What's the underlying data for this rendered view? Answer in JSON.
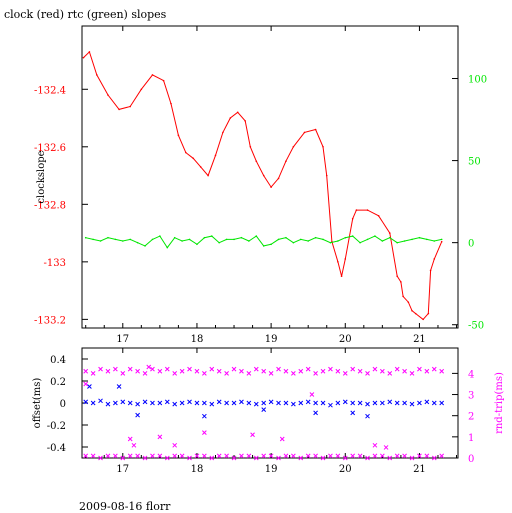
{
  "title": "clock (red) rtc (green) slopes",
  "footer": "2009-08-16 florr",
  "colors": {
    "clock": "#ff0000",
    "rtc": "#00e600",
    "offset": "#0000ff",
    "roundtrip": "#ff00ff",
    "axis": "#000000"
  },
  "chart_data": [
    {
      "type": "line",
      "xlabel": "",
      "ylabel": "clockslope",
      "y2label": "",
      "xlim": [
        16.45,
        21.52
      ],
      "ylim": [
        -133.23,
        -132.18
      ],
      "y2lim": [
        -52,
        132
      ],
      "x_ticks": [
        17,
        18,
        19,
        20,
        21
      ],
      "y_ticks": [
        -132.4,
        -132.6,
        -132.8,
        -133.0,
        -133.2
      ],
      "y_tick_labels": [
        "-132.4",
        "-132.6",
        "-132.8",
        "-133",
        "-133.2"
      ],
      "y2_ticks": [
        100,
        50,
        0,
        -50
      ],
      "y2_tick_labels": [
        "100",
        "50",
        "0",
        "-50"
      ],
      "grid": false,
      "series": [
        {
          "name": "clock",
          "axis": "left",
          "color": "#ff0000",
          "x": [
            16.47,
            16.55,
            16.65,
            16.8,
            16.95,
            17.1,
            17.25,
            17.4,
            17.55,
            17.65,
            17.75,
            17.85,
            17.95,
            18.05,
            18.15,
            18.25,
            18.35,
            18.45,
            18.55,
            18.65,
            18.72,
            18.8,
            18.9,
            19.0,
            19.1,
            19.2,
            19.3,
            19.45,
            19.6,
            19.7,
            19.75,
            19.82,
            19.9,
            19.95,
            20.0,
            20.1,
            20.15,
            20.3,
            20.45,
            20.6,
            20.7,
            20.75,
            20.78,
            20.85,
            20.9,
            20.95,
            21.05,
            21.12,
            21.15,
            21.2,
            21.3
          ],
          "y": [
            -132.29,
            -132.27,
            -132.35,
            -132.42,
            -132.47,
            -132.46,
            -132.4,
            -132.35,
            -132.37,
            -132.45,
            -132.56,
            -132.62,
            -132.64,
            -132.67,
            -132.7,
            -132.63,
            -132.55,
            -132.5,
            -132.48,
            -132.51,
            -132.6,
            -132.65,
            -132.7,
            -132.74,
            -132.71,
            -132.65,
            -132.6,
            -132.55,
            -132.54,
            -132.6,
            -132.7,
            -132.93,
            -133.0,
            -133.05,
            -132.99,
            -132.85,
            -132.82,
            -132.82,
            -132.84,
            -132.9,
            -133.05,
            -133.07,
            -133.12,
            -133.14,
            -133.17,
            -133.18,
            -133.2,
            -133.18,
            -133.03,
            -132.99,
            -132.93
          ]
        },
        {
          "name": "rtc",
          "axis": "right",
          "color": "#00e600",
          "x": [
            16.5,
            16.6,
            16.7,
            16.8,
            16.9,
            17.0,
            17.1,
            17.2,
            17.3,
            17.4,
            17.5,
            17.6,
            17.7,
            17.8,
            17.9,
            18.0,
            18.1,
            18.2,
            18.3,
            18.4,
            18.5,
            18.6,
            18.7,
            18.8,
            18.9,
            19.0,
            19.1,
            19.2,
            19.3,
            19.4,
            19.5,
            19.6,
            19.7,
            19.8,
            19.9,
            20.0,
            20.1,
            20.2,
            20.3,
            20.4,
            20.5,
            20.6,
            20.7,
            20.8,
            20.9,
            21.0,
            21.1,
            21.2,
            21.3
          ],
          "y": [
            3,
            2,
            1,
            3,
            2,
            1,
            2,
            0,
            -2,
            2,
            4,
            -3,
            3,
            1,
            2,
            -1,
            3,
            4,
            0,
            2,
            2,
            3,
            1,
            4,
            -2,
            -1,
            2,
            3,
            0,
            2,
            1,
            3,
            2,
            0,
            1,
            3,
            4,
            0,
            2,
            4,
            1,
            3,
            0,
            1,
            2,
            3,
            2,
            1,
            2
          ]
        }
      ]
    },
    {
      "type": "scatter",
      "xlabel": "",
      "ylabel": "offset(ms)",
      "y2label": "rnd-trip(ms)",
      "xlim": [
        16.45,
        21.52
      ],
      "ylim": [
        -0.5,
        0.5
      ],
      "y2lim": [
        0,
        5.2
      ],
      "x_ticks": [
        17,
        18,
        19,
        20,
        21
      ],
      "y_ticks": [
        0.4,
        0.2,
        0,
        -0.2,
        -0.4
      ],
      "y_tick_labels": [
        "0.4",
        "0.2",
        "0",
        "-0.2",
        "-0.4"
      ],
      "y2_ticks": [
        4,
        3,
        2,
        1,
        0
      ],
      "y2_tick_labels": [
        "4",
        "3",
        "2",
        "1",
        "0"
      ],
      "grid": false,
      "series": [
        {
          "name": "offset",
          "axis": "left",
          "color": "#0000ff",
          "x": [
            16.5,
            16.6,
            16.7,
            16.8,
            16.9,
            17.0,
            17.1,
            17.2,
            17.3,
            17.4,
            17.5,
            17.6,
            17.7,
            17.8,
            17.9,
            18.0,
            18.1,
            18.2,
            18.3,
            18.4,
            18.5,
            18.6,
            18.7,
            18.8,
            18.9,
            19.0,
            19.1,
            19.2,
            19.3,
            19.4,
            19.5,
            19.6,
            19.7,
            19.8,
            19.9,
            20.0,
            20.1,
            20.2,
            20.3,
            20.4,
            20.5,
            20.6,
            20.7,
            20.8,
            20.9,
            21.0,
            21.1,
            21.2,
            21.3,
            16.55,
            16.95,
            17.2,
            18.1,
            18.9,
            19.6,
            20.3,
            20.1
          ],
          "y": [
            0.01,
            0.0,
            0.02,
            -0.01,
            0.0,
            0.01,
            0.0,
            -0.01,
            0.01,
            0.0,
            0.0,
            0.01,
            -0.01,
            0.0,
            0.01,
            0.0,
            0.0,
            -0.01,
            0.01,
            0.0,
            0.0,
            0.01,
            0.0,
            -0.01,
            0.0,
            0.01,
            0.0,
            0.0,
            -0.01,
            0.0,
            0.01,
            0.0,
            0.0,
            -0.02,
            0.0,
            0.01,
            0.0,
            0.0,
            -0.01,
            0.0,
            0.0,
            0.01,
            0.0,
            0.0,
            -0.01,
            0.0,
            0.01,
            0.0,
            0.0,
            0.15,
            0.15,
            -0.11,
            -0.12,
            -0.06,
            -0.09,
            -0.12,
            -0.09
          ]
        },
        {
          "name": "round-trip",
          "axis": "right",
          "color": "#ff00ff",
          "x": [
            16.5,
            16.6,
            16.7,
            16.8,
            16.9,
            17.0,
            17.1,
            17.2,
            17.3,
            17.4,
            17.5,
            17.6,
            17.7,
            17.8,
            17.9,
            18.0,
            18.1,
            18.2,
            18.3,
            18.4,
            18.5,
            18.6,
            18.7,
            18.8,
            18.9,
            19.0,
            19.1,
            19.2,
            19.3,
            19.4,
            19.5,
            19.6,
            19.7,
            19.8,
            19.9,
            20.0,
            20.1,
            20.2,
            20.3,
            20.4,
            20.5,
            20.6,
            20.7,
            20.8,
            20.9,
            21.0,
            21.1,
            21.2,
            21.3,
            16.5,
            16.6,
            16.7,
            16.8,
            16.9,
            17.0,
            17.1,
            17.2,
            17.3,
            17.4,
            17.5,
            17.6,
            17.7,
            17.8,
            17.9,
            18.0,
            18.1,
            18.2,
            18.3,
            18.4,
            18.5,
            18.6,
            18.7,
            18.8,
            18.9,
            19.0,
            19.1,
            19.2,
            19.3,
            19.4,
            19.5,
            19.6,
            19.7,
            19.8,
            19.9,
            20.0,
            20.1,
            20.2,
            20.3,
            20.4,
            20.5,
            20.6,
            20.7,
            20.8,
            20.9,
            21.0,
            21.1,
            21.2,
            21.3,
            17.1,
            17.15,
            17.5,
            17.7,
            18.1,
            18.75,
            19.55,
            16.5,
            19.15,
            20.4,
            20.55,
            17.35
          ],
          "y": [
            4.1,
            4.0,
            4.2,
            4.1,
            4.2,
            4.0,
            4.2,
            4.1,
            4.0,
            4.2,
            4.1,
            4.2,
            4.0,
            4.1,
            4.2,
            4.1,
            4.0,
            4.2,
            4.1,
            4.0,
            4.2,
            4.1,
            4.0,
            4.2,
            4.1,
            4.0,
            4.2,
            4.1,
            4.0,
            4.1,
            4.2,
            4.0,
            4.1,
            4.2,
            4.1,
            4.0,
            4.2,
            4.1,
            4.0,
            4.2,
            4.1,
            4.0,
            4.2,
            4.1,
            4.0,
            4.2,
            4.1,
            4.2,
            4.1,
            0.1,
            0.1,
            0.0,
            0.1,
            0.1,
            0.0,
            0.1,
            0.1,
            0.0,
            0.1,
            0.1,
            0.0,
            0.1,
            0.1,
            0.0,
            0.1,
            0.1,
            0.0,
            0.1,
            0.1,
            0.0,
            0.1,
            0.1,
            0.0,
            0.1,
            0.1,
            0.0,
            0.1,
            0.1,
            0.0,
            0.1,
            0.1,
            0.0,
            0.1,
            0.1,
            0.0,
            0.1,
            0.1,
            0.0,
            0.1,
            0.1,
            0.0,
            0.1,
            0.1,
            0.0,
            0.1,
            0.1,
            0.0,
            0.1,
            0.9,
            0.6,
            1.0,
            0.6,
            1.2,
            1.1,
            3.0,
            3.5,
            0.9,
            0.6,
            0.5,
            4.3
          ]
        }
      ]
    }
  ]
}
